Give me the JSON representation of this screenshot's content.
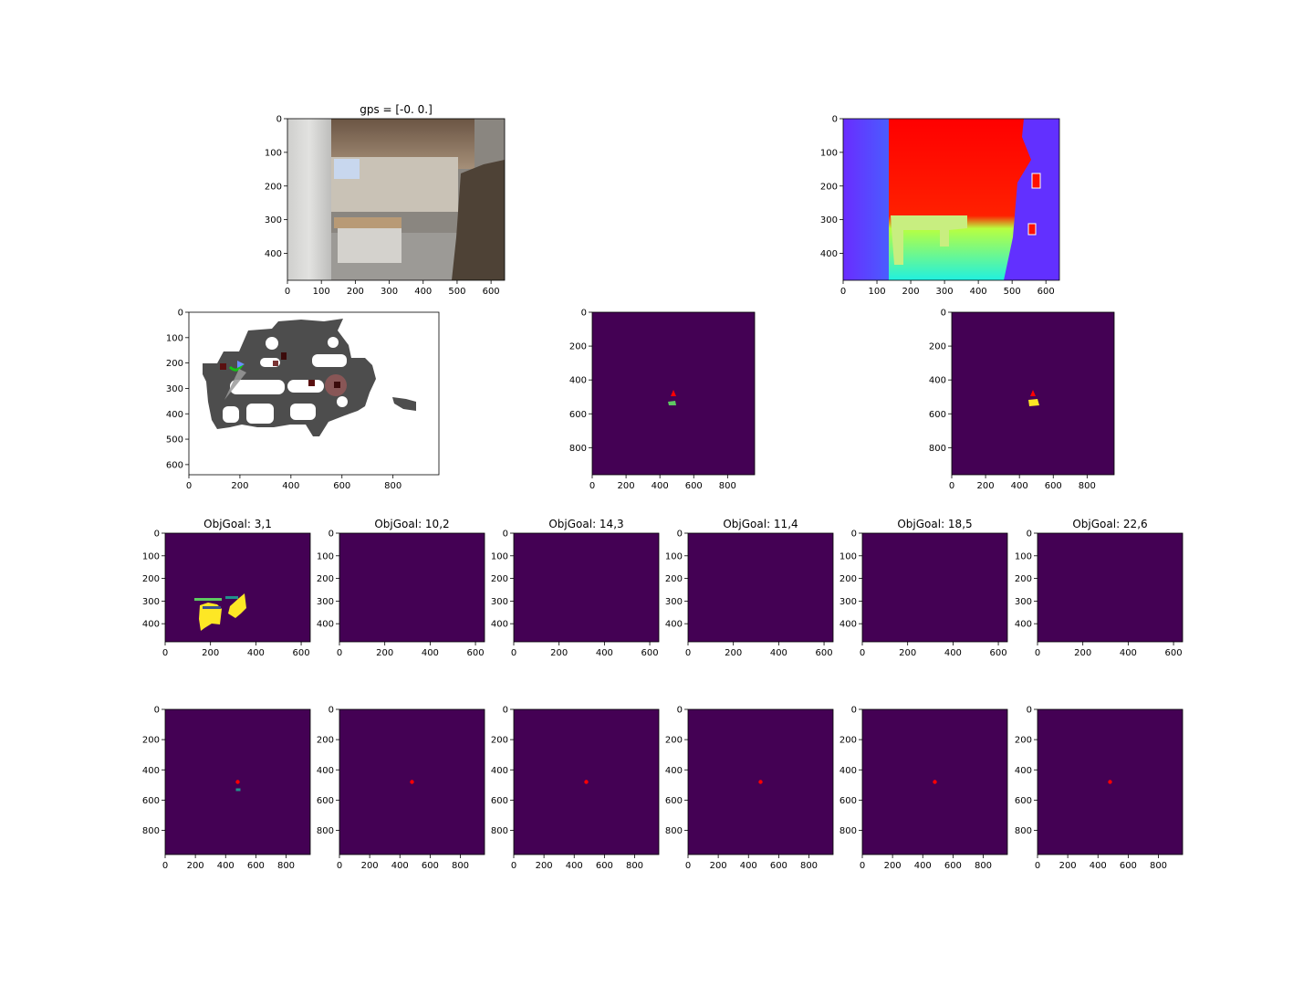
{
  "colors": {
    "viridis_bg": "#440154",
    "viridis_yellow": "#fde725",
    "viridis_teal": "#21918c",
    "viridis_green": "#5ec962",
    "agent_red": "#ff0000",
    "map_gray": "#4d4d4d",
    "map_dark": "#3a3a3a"
  },
  "chart_data": [
    {
      "id": "rgb",
      "type": "image",
      "title": "gps = [-0.  0.]",
      "xlim": [
        0,
        640
      ],
      "ylim": [
        480,
        0
      ],
      "xticks": [
        0,
        100,
        200,
        300,
        400,
        500,
        600
      ],
      "yticks": [
        0,
        100,
        200,
        300,
        400
      ]
    },
    {
      "id": "depth",
      "type": "image",
      "title": "",
      "xlim": [
        0,
        640
      ],
      "ylim": [
        480,
        0
      ],
      "xticks": [
        0,
        100,
        200,
        300,
        400,
        500,
        600
      ],
      "yticks": [
        0,
        100,
        200,
        300,
        400
      ]
    },
    {
      "id": "topdown",
      "type": "image",
      "title": "",
      "xlim": [
        0,
        980
      ],
      "ylim": [
        640,
        0
      ],
      "xticks": [
        0,
        200,
        400,
        600,
        800
      ],
      "yticks": [
        0,
        100,
        200,
        300,
        400,
        500,
        600
      ]
    },
    {
      "id": "localmap1",
      "type": "heatmap",
      "title": "",
      "xlim": [
        0,
        960
      ],
      "ylim": [
        960,
        0
      ],
      "xticks": [
        0,
        200,
        400,
        600,
        800
      ],
      "yticks": [
        0,
        200,
        400,
        600,
        800
      ],
      "agent": [
        480,
        480
      ]
    },
    {
      "id": "localmap2",
      "type": "heatmap",
      "title": "",
      "xlim": [
        0,
        960
      ],
      "ylim": [
        960,
        0
      ],
      "xticks": [
        0,
        200,
        400,
        600,
        800
      ],
      "yticks": [
        0,
        200,
        400,
        600,
        800
      ],
      "agent": [
        480,
        480
      ]
    },
    {
      "id": "goal1",
      "type": "heatmap",
      "title": "ObjGoal: 3,1",
      "xlim": [
        0,
        640
      ],
      "ylim": [
        480,
        0
      ],
      "xticks": [
        0,
        200,
        400,
        600
      ],
      "yticks": [
        0,
        100,
        200,
        300,
        400
      ]
    },
    {
      "id": "goal2",
      "type": "heatmap",
      "title": "ObjGoal: 10,2",
      "xlim": [
        0,
        640
      ],
      "ylim": [
        480,
        0
      ],
      "xticks": [
        0,
        200,
        400,
        600
      ],
      "yticks": [
        0,
        100,
        200,
        300,
        400
      ]
    },
    {
      "id": "goal3",
      "type": "heatmap",
      "title": "ObjGoal: 14,3",
      "xlim": [
        0,
        640
      ],
      "ylim": [
        480,
        0
      ],
      "xticks": [
        0,
        200,
        400,
        600
      ],
      "yticks": [
        0,
        100,
        200,
        300,
        400
      ]
    },
    {
      "id": "goal4",
      "type": "heatmap",
      "title": "ObjGoal: 11,4",
      "xlim": [
        0,
        640
      ],
      "ylim": [
        480,
        0
      ],
      "xticks": [
        0,
        200,
        400,
        600
      ],
      "yticks": [
        0,
        100,
        200,
        300,
        400
      ]
    },
    {
      "id": "goal5",
      "type": "heatmap",
      "title": "ObjGoal: 18,5",
      "xlim": [
        0,
        640
      ],
      "ylim": [
        480,
        0
      ],
      "xticks": [
        0,
        200,
        400,
        600
      ],
      "yticks": [
        0,
        100,
        200,
        300,
        400
      ]
    },
    {
      "id": "goal6",
      "type": "heatmap",
      "title": "ObjGoal: 22,6",
      "xlim": [
        0,
        640
      ],
      "ylim": [
        480,
        0
      ],
      "xticks": [
        0,
        200,
        400,
        600
      ],
      "yticks": [
        0,
        100,
        200,
        300,
        400
      ]
    },
    {
      "id": "gmap1",
      "type": "heatmap",
      "title": "",
      "xlim": [
        0,
        960
      ],
      "ylim": [
        960,
        0
      ],
      "xticks": [
        0,
        200,
        400,
        600,
        800
      ],
      "yticks": [
        0,
        200,
        400,
        600,
        800
      ],
      "agent": [
        480,
        480
      ]
    },
    {
      "id": "gmap2",
      "type": "heatmap",
      "title": "",
      "xlim": [
        0,
        960
      ],
      "ylim": [
        960,
        0
      ],
      "xticks": [
        0,
        200,
        400,
        600,
        800
      ],
      "yticks": [
        0,
        200,
        400,
        600,
        800
      ],
      "agent": [
        480,
        480
      ]
    },
    {
      "id": "gmap3",
      "type": "heatmap",
      "title": "",
      "xlim": [
        0,
        960
      ],
      "ylim": [
        960,
        0
      ],
      "xticks": [
        0,
        200,
        400,
        600,
        800
      ],
      "yticks": [
        0,
        200,
        400,
        600,
        800
      ],
      "agent": [
        480,
        480
      ]
    },
    {
      "id": "gmap4",
      "type": "heatmap",
      "title": "",
      "xlim": [
        0,
        960
      ],
      "ylim": [
        960,
        0
      ],
      "xticks": [
        0,
        200,
        400,
        600,
        800
      ],
      "yticks": [
        0,
        200,
        400,
        600,
        800
      ],
      "agent": [
        480,
        480
      ]
    },
    {
      "id": "gmap5",
      "type": "heatmap",
      "title": "",
      "xlim": [
        0,
        960
      ],
      "ylim": [
        960,
        0
      ],
      "xticks": [
        0,
        200,
        400,
        600,
        800
      ],
      "yticks": [
        0,
        200,
        400,
        600,
        800
      ],
      "agent": [
        480,
        480
      ]
    },
    {
      "id": "gmap6",
      "type": "heatmap",
      "title": "",
      "xlim": [
        0,
        960
      ],
      "ylim": [
        960,
        0
      ],
      "xticks": [
        0,
        200,
        400,
        600,
        800
      ],
      "yticks": [
        0,
        200,
        400,
        600,
        800
      ],
      "agent": [
        480,
        480
      ]
    }
  ]
}
